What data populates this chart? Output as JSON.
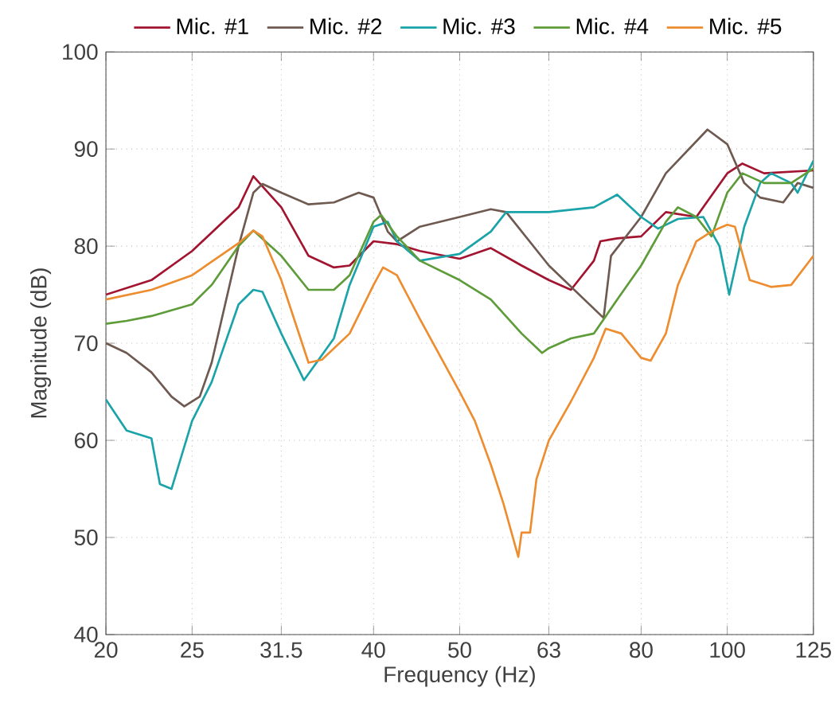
{
  "chart_data": {
    "type": "line",
    "xlabel": "Frequency (Hz)",
    "ylabel": "Magnitude (dB)",
    "log": "x",
    "grid": true,
    "legend": "top",
    "line_style": "solid",
    "marker": "none",
    "xlim": [
      20,
      125
    ],
    "ylim": [
      40,
      100
    ],
    "xticks": [
      20,
      25,
      31.5,
      40,
      50,
      63,
      80,
      100,
      125
    ],
    "yticks": [
      40,
      50,
      60,
      70,
      80,
      90,
      100
    ],
    "series": [
      {
        "name": "Mic. #1",
        "color": "#a2142f",
        "x": [
          20,
          22.5,
          25,
          28.2,
          29.3,
          31.5,
          33.8,
          36.1,
          37.6,
          40,
          42.5,
          45.1,
          50,
          54.2,
          58.7,
          63,
          66.7,
          70.8,
          72,
          75.2,
          80,
          85.3,
          92.3,
          100,
          104,
          110,
          125
        ],
        "values": [
          75,
          76.5,
          79.5,
          84,
          87.2,
          84,
          79,
          77.8,
          78,
          80.5,
          80.2,
          79.5,
          78.7,
          79.8,
          78,
          76.5,
          75.5,
          78.5,
          80.5,
          80.8,
          81,
          83.5,
          83,
          87.5,
          88.5,
          87.5,
          87.8
        ]
      },
      {
        "name": "Mic. #2",
        "color": "#6e5a50",
        "x": [
          20,
          21.1,
          22.5,
          23.7,
          24.5,
          25.5,
          26.3,
          28.2,
          29.3,
          30,
          31.5,
          33.8,
          36.1,
          38.5,
          40,
          41.5,
          42.5,
          45.1,
          50,
          54.2,
          56.4,
          63,
          72.6,
          74,
          80,
          85.3,
          95,
          100,
          104.5,
          108.9,
          115.6,
          120,
          125
        ],
        "values": [
          70,
          69,
          67,
          64.5,
          63.5,
          64.5,
          68,
          80,
          85.5,
          86.4,
          85.5,
          84.3,
          84.5,
          85.5,
          85,
          81.5,
          80.5,
          82,
          83,
          83.8,
          83.5,
          78,
          72.6,
          79,
          83,
          87.5,
          92,
          90.5,
          86.5,
          85,
          84.5,
          86.5,
          86
        ]
      },
      {
        "name": "Mic. #3",
        "color": "#1aa3a8",
        "x": [
          20,
          21.1,
          22.5,
          23,
          23.7,
          25,
          26.3,
          28.2,
          29.3,
          30,
          31.5,
          33.4,
          36.1,
          37.6,
          40,
          41.5,
          42.5,
          45.1,
          50,
          54.2,
          56.4,
          63,
          70.8,
          75.2,
          80,
          83.6,
          88,
          94,
          98,
          100.5,
          104.5,
          108.9,
          112,
          118,
          120,
          125
        ],
        "values": [
          64.2,
          61,
          60.2,
          55.5,
          55,
          62,
          66,
          74,
          75.5,
          75.3,
          71,
          66.2,
          70.5,
          76,
          82,
          82.5,
          80.5,
          78.5,
          79.2,
          81.5,
          83.5,
          83.5,
          84,
          85.3,
          83,
          81.8,
          82.8,
          83,
          80,
          75,
          82,
          86.5,
          87.5,
          86.5,
          85.5,
          88.8
        ]
      },
      {
        "name": "Mic. #4",
        "color": "#5e9c3a",
        "x": [
          20,
          21.1,
          22.5,
          25,
          26.3,
          28.2,
          29.3,
          31.5,
          33.8,
          36.1,
          37.6,
          40,
          40.8,
          42.5,
          45.1,
          50,
          54.2,
          58.7,
          61.9,
          63,
          66.7,
          70.8,
          75.2,
          80,
          85.3,
          88,
          92.3,
          96,
          100,
          104,
          110,
          118,
          125
        ],
        "values": [
          72,
          72.3,
          72.8,
          74,
          76,
          80,
          81.6,
          79,
          75.5,
          75.5,
          77,
          82.5,
          83.2,
          81,
          78.5,
          76.5,
          74.5,
          71,
          69,
          69.5,
          70.5,
          71,
          74.5,
          78,
          82.5,
          84,
          83,
          81,
          85.5,
          87.5,
          86.5,
          86.5,
          88
        ]
      },
      {
        "name": "Mic. #5",
        "color": "#ee8d2f",
        "x": [
          20,
          22.5,
          25,
          28.2,
          29.3,
          30,
          31.5,
          33.8,
          35,
          37.6,
          40,
          41,
          42.5,
          45.1,
          50,
          52,
          54.2,
          56,
          58.2,
          58.7,
          60,
          61,
          63,
          66.7,
          70.8,
          73,
          76,
          80,
          82,
          85.3,
          88,
          92.3,
          96,
          100,
          102,
          106,
          112,
          118,
          125
        ],
        "values": [
          74.5,
          75.5,
          77,
          80.3,
          81.6,
          81,
          76.5,
          68,
          68.3,
          71,
          76,
          77.8,
          77,
          72.5,
          65,
          62,
          57.5,
          53.5,
          48,
          50.5,
          50.5,
          56,
          60,
          64,
          68.5,
          71.5,
          71,
          68.5,
          68.2,
          71,
          76,
          80.5,
          81.5,
          82.2,
          82,
          76.5,
          75.8,
          76,
          79
        ]
      }
    ]
  }
}
